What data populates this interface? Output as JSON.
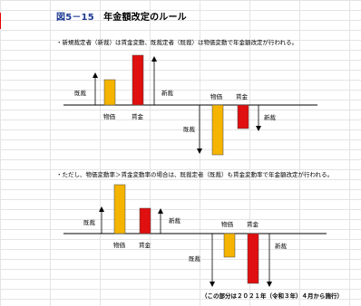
{
  "title": {
    "prefix": "図5－15",
    "text": "年金額改定のルール"
  },
  "section1": {
    "note": "・新規裁定者（新裁）は賃金変動、既裁定者（既裁）は物価変動で年金額改定が行われる。",
    "label_kisai": "既裁",
    "label_shinsai": "新裁",
    "label_price": "物価",
    "label_wage": "賃金"
  },
  "section2": {
    "note": "・ただし、物価変動率＞賃金変動率の場合は、既裁定者（既裁）も賃金変動率で年金額改定が行われる。",
    "label_kisai": "既裁",
    "label_shinsai": "新裁",
    "label_price": "物価",
    "label_wage": "賃金"
  },
  "footer": "（この部分は２０２１年（令和３年）４月から施行）",
  "colors": {
    "price_bar": "#f5b400",
    "wage_bar": "#e01010",
    "title_number": "#1f3a93",
    "edge_mark": "#e60000"
  }
}
